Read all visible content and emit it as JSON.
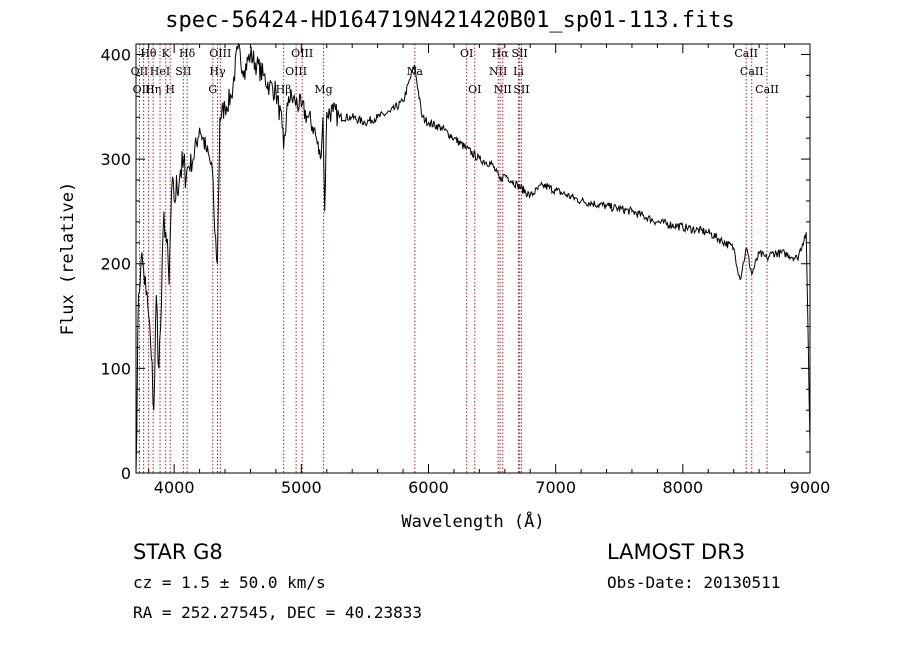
{
  "chart_data": {
    "type": "line",
    "title": "spec-56424-HD164719N421420B01_sp01-113.fits",
    "xlabel": "Wavelength (Å)",
    "ylabel": "Flux (relative)",
    "xlim": [
      3700,
      9000
    ],
    "ylim": [
      0,
      410
    ],
    "xticks": [
      4000,
      5000,
      6000,
      7000,
      8000,
      9000
    ],
    "yticks": [
      0,
      100,
      200,
      300,
      400
    ],
    "series": [
      {
        "name": "spectrum",
        "x": [
          3700,
          3720,
          3740,
          3760,
          3780,
          3800,
          3820,
          3840,
          3860,
          3880,
          3900,
          3920,
          3940,
          3960,
          3980,
          4000,
          4050,
          4100,
          4150,
          4200,
          4250,
          4300,
          4320,
          4340,
          4360,
          4400,
          4450,
          4500,
          4550,
          4600,
          4650,
          4700,
          4750,
          4800,
          4850,
          4861,
          4900,
          4950,
          5000,
          5050,
          5100,
          5150,
          5170,
          5184,
          5200,
          5250,
          5300,
          5400,
          5500,
          5600,
          5700,
          5800,
          5890,
          5950,
          6000,
          6100,
          6200,
          6300,
          6400,
          6500,
          6563,
          6600,
          6700,
          6800,
          6900,
          7000,
          7200,
          7400,
          7600,
          7800,
          8000,
          8200,
          8400,
          8450,
          8500,
          8542,
          8600,
          8662,
          8700,
          8800,
          8900,
          8970,
          9000
        ],
        "values": [
          0,
          170,
          205,
          195,
          170,
          150,
          110,
          60,
          170,
          100,
          160,
          250,
          220,
          180,
          270,
          260,
          290,
          290,
          300,
          330,
          310,
          290,
          230,
          200,
          340,
          350,
          360,
          405,
          385,
          400,
          390,
          380,
          370,
          365,
          330,
          310,
          360,
          355,
          350,
          340,
          330,
          300,
          340,
          250,
          345,
          345,
          340,
          340,
          335,
          340,
          345,
          355,
          390,
          340,
          335,
          330,
          320,
          310,
          300,
          295,
          280,
          285,
          275,
          265,
          275,
          270,
          260,
          255,
          250,
          240,
          235,
          230,
          215,
          185,
          215,
          190,
          210,
          205,
          210,
          210,
          205,
          230,
          30
        ]
      }
    ],
    "line_markers": [
      {
        "label": "Hθ",
        "wavelength": 3798,
        "row": 1
      },
      {
        "label": "OII",
        "wavelength": 3727,
        "row": 2
      },
      {
        "label": "OIII",
        "wavelength": 3760,
        "row": 3
      },
      {
        "label": "Hη",
        "wavelength": 3835,
        "row": 3
      },
      {
        "label": "K",
        "wavelength": 3934,
        "row": 1
      },
      {
        "label": "HeI",
        "wavelength": 3889,
        "row": 2
      },
      {
        "label": "H",
        "wavelength": 3969,
        "row": 3
      },
      {
        "label": "Hδ",
        "wavelength": 4102,
        "row": 1
      },
      {
        "label": "SII",
        "wavelength": 4072,
        "row": 2
      },
      {
        "label": "OIII",
        "wavelength": 4363,
        "row": 1
      },
      {
        "label": "Hγ",
        "wavelength": 4341,
        "row": 2
      },
      {
        "label": "G",
        "wavelength": 4304,
        "row": 3
      },
      {
        "label": "OIII",
        "wavelength": 5007,
        "row": 1
      },
      {
        "label": "OIII",
        "wavelength": 4959,
        "row": 2
      },
      {
        "label": "Hβ",
        "wavelength": 4861,
        "row": 3
      },
      {
        "label": "Mg",
        "wavelength": 5175,
        "row": 3
      },
      {
        "label": "Na",
        "wavelength": 5893,
        "row": 2
      },
      {
        "label": "OI",
        "wavelength": 6300,
        "row": 1
      },
      {
        "label": "OI",
        "wavelength": 6364,
        "row": 3
      },
      {
        "label": "Hα",
        "wavelength": 6563,
        "row": 1
      },
      {
        "label": "NII",
        "wavelength": 6548,
        "row": 2
      },
      {
        "label": "NII",
        "wavelength": 6584,
        "row": 3
      },
      {
        "label": "SII",
        "wavelength": 6717,
        "row": 1
      },
      {
        "label": "Li",
        "wavelength": 6708,
        "row": 2
      },
      {
        "label": "SII",
        "wavelength": 6731,
        "row": 3
      },
      {
        "label": "CaII",
        "wavelength": 8498,
        "row": 1
      },
      {
        "label": "CaII",
        "wavelength": 8542,
        "row": 2
      },
      {
        "label": "CaII",
        "wavelength": 8662,
        "row": 3
      }
    ]
  },
  "info": {
    "class": "STAR    G8",
    "cz": "cz = 1.5 ± 50.0 km/s",
    "coords": "RA = 252.27545, DEC =  40.23833",
    "survey": "LAMOST DR3",
    "obs_date": "Obs-Date: 20130511"
  },
  "colors": {
    "axis": "#000000",
    "spectrum": "#000000",
    "line_marker": "#b22222"
  }
}
